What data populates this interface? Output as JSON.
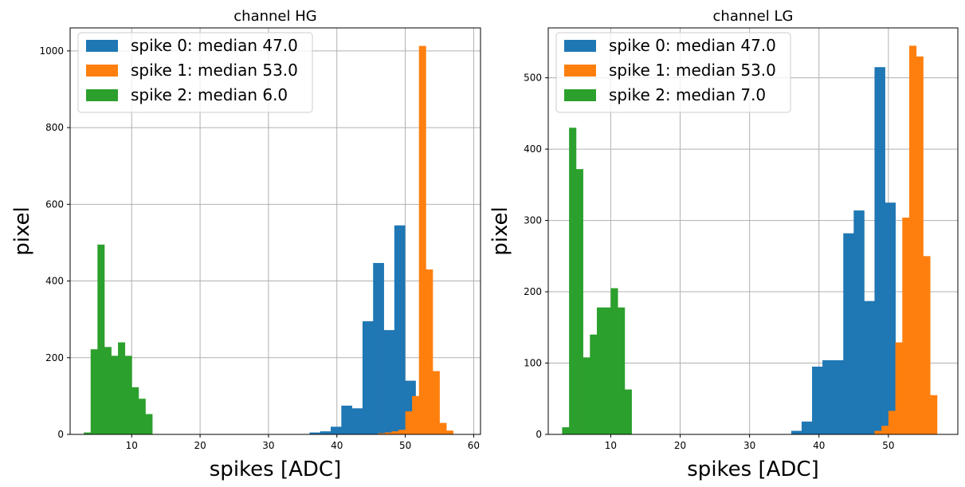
{
  "chart_data": [
    {
      "type": "bar",
      "subtype": "histogram",
      "title": "channel HG",
      "xlabel": "spikes [ADC]",
      "ylabel": "pixel",
      "xlim": [
        1,
        61
      ],
      "ylim": [
        0,
        1060
      ],
      "xticks": [
        10,
        20,
        30,
        40,
        50,
        60
      ],
      "yticks": [
        0,
        200,
        400,
        600,
        800,
        1000
      ],
      "grid": true,
      "legend_position": "upper-left",
      "series": [
        {
          "name": "spike 0: median 47.0",
          "color": "#1f77b4",
          "bin_width": 1.55,
          "bins": [
            [
              36.0,
              5
            ],
            [
              37.55,
              8
            ],
            [
              39.1,
              20
            ],
            [
              40.65,
              75
            ],
            [
              42.2,
              68
            ],
            [
              43.75,
              295
            ],
            [
              45.3,
              447
            ],
            [
              46.85,
              272
            ],
            [
              48.4,
              545
            ],
            [
              49.95,
              140
            ]
          ]
        },
        {
          "name": "spike 1: median 53.0",
          "color": "#ff7f0e",
          "bin_width": 1.0,
          "bins": [
            [
              46,
              3
            ],
            [
              47,
              5
            ],
            [
              48,
              8
            ],
            [
              49,
              12
            ],
            [
              50,
              60
            ],
            [
              51,
              100
            ],
            [
              52,
              1013
            ],
            [
              53,
              430
            ],
            [
              54,
              165
            ],
            [
              55,
              30
            ],
            [
              56,
              10
            ]
          ]
        },
        {
          "name": "spike 2: median 6.0",
          "color": "#2ca02c",
          "bin_width": 1.0,
          "bins": [
            [
              3,
              5
            ],
            [
              4,
              222
            ],
            [
              5,
              495
            ],
            [
              6,
              228
            ],
            [
              7,
              205
            ],
            [
              8,
              240
            ],
            [
              9,
              205
            ],
            [
              10,
              123
            ],
            [
              11,
              93
            ],
            [
              12,
              53
            ]
          ]
        }
      ]
    },
    {
      "type": "bar",
      "subtype": "histogram",
      "title": "channel LG",
      "xlabel": "spikes [ADC]",
      "ylabel": "pixel",
      "xlim": [
        1,
        60
      ],
      "ylim": [
        0,
        570
      ],
      "xticks": [
        10,
        20,
        30,
        40,
        50
      ],
      "yticks": [
        0,
        100,
        200,
        300,
        400,
        500
      ],
      "grid": true,
      "legend_position": "upper-left",
      "series": [
        {
          "name": "spike 0: median 47.0",
          "color": "#1f77b4",
          "bin_width": 1.5,
          "bins": [
            [
              36.0,
              5
            ],
            [
              37.5,
              18
            ],
            [
              39.0,
              95
            ],
            [
              40.5,
              104
            ],
            [
              42.0,
              104
            ],
            [
              43.5,
              282
            ],
            [
              45.0,
              314
            ],
            [
              46.5,
              187
            ],
            [
              48.0,
              515
            ],
            [
              49.5,
              325
            ]
          ]
        },
        {
          "name": "spike 1: median 53.0",
          "color": "#ff7f0e",
          "bin_width": 1.0,
          "bins": [
            [
              48,
              5
            ],
            [
              49,
              12
            ],
            [
              50,
              33
            ],
            [
              51,
              129
            ],
            [
              52,
              304
            ],
            [
              53,
              545
            ],
            [
              54,
              530
            ],
            [
              55,
              250
            ],
            [
              56,
              55
            ]
          ]
        },
        {
          "name": "spike 2: median 7.0",
          "color": "#2ca02c",
          "bin_width": 1.0,
          "bins": [
            [
              3,
              10
            ],
            [
              4,
              430
            ],
            [
              5,
              372
            ],
            [
              6,
              108
            ],
            [
              7,
              140
            ],
            [
              8,
              178
            ],
            [
              9,
              178
            ],
            [
              10,
              205
            ],
            [
              11,
              178
            ],
            [
              12,
              63
            ]
          ]
        }
      ]
    }
  ]
}
